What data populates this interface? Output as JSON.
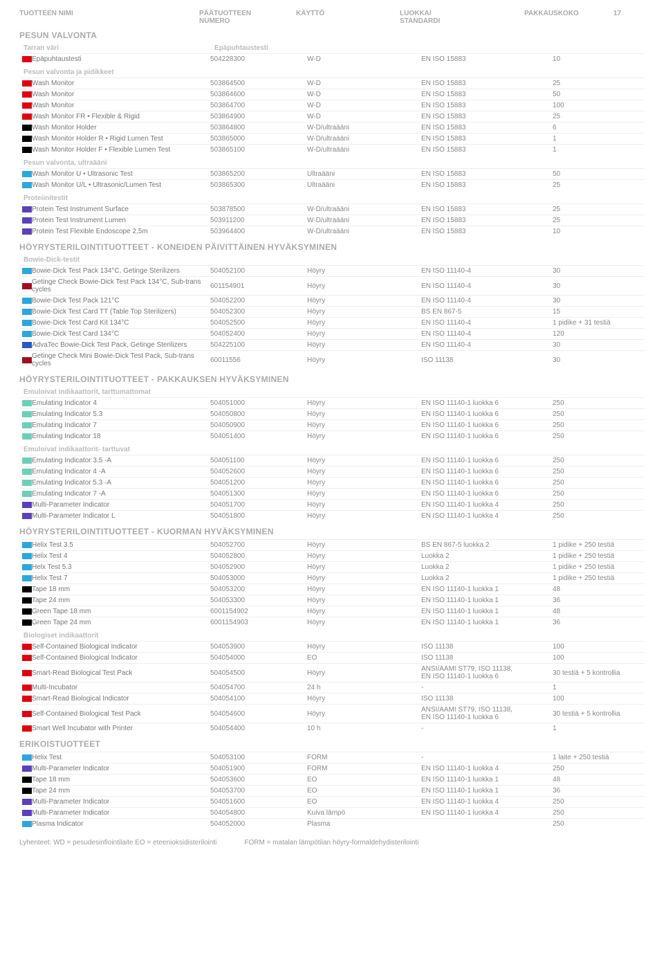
{
  "page_number": "17",
  "columns": {
    "name": "TUOTTEEN NIMI",
    "number": "PÄÄTUOTTEEN\nNUMERO",
    "use": "KÄYTTÖ",
    "standard": "LUOKKA/\nSTANDARDI",
    "pack": "PAKKAUSKOKO"
  },
  "colors": {
    "red": "#e3000f",
    "darkred": "#a30d1f",
    "black": "#000000",
    "cyan": "#2aa7df",
    "blue": "#2a58c6",
    "purple": "#5b3fbf",
    "teal": "#6cd0b8"
  },
  "sections": [
    {
      "title": "PESUN VALVONTA",
      "groups": [
        {
          "subtitle": "Tarran väri",
          "subtitle2": "Epäpuhtaustesti",
          "rows": [
            [
              "red",
              "Epäpuhtaustesti",
              "504228300",
              "W-D",
              "EN ISO 15883",
              "10"
            ]
          ]
        },
        {
          "subtitle": "Pesun valvonta ja pidikkeet",
          "rows": [
            [
              "red",
              "Wash Monitor",
              "503864500",
              "W-D",
              "EN ISO 15883",
              "25"
            ],
            [
              "red",
              "Wash Monitor",
              "503864600",
              "W-D",
              "EN ISO 15883",
              "50"
            ],
            [
              "red",
              "Wash Monitor",
              "503864700",
              "W-D",
              "EN ISO 15883",
              "100"
            ],
            [
              "red",
              "Wash Monitor FR • Flexible & Rigid",
              "503864900",
              "W-D",
              "EN ISO 15883",
              "25"
            ],
            [
              "black",
              "Wash Monitor Holder",
              "503864800",
              "W-D/ultraääni",
              "EN ISO 15883",
              "6"
            ],
            [
              "black",
              "Wash Monitor Holder R • Rigid Lumen Test",
              "503865000",
              "W-D/ultraääni",
              "EN ISO 15883",
              "1"
            ],
            [
              "black",
              "Wash Monitor Holder F • Flexible Lumen Test",
              "503865100",
              "W-D/ultraääni",
              "EN ISO 15883",
              "1"
            ]
          ]
        },
        {
          "subtitle": "Pesun valvonta, ultraääni",
          "rows": [
            [
              "cyan",
              "Wash Monitor U • Ultrasonic Test",
              "503865200",
              "Ultraääni",
              "EN ISO 15883",
              "50"
            ],
            [
              "cyan",
              "Wash Monitor U/L • Ultrasonic/Lumen Test",
              "503865300",
              "Ultraääni",
              "EN ISO 15883",
              "25"
            ]
          ]
        },
        {
          "subtitle": "Proteiinitestit",
          "rows": [
            [
              "purple",
              "Protein Test Instrument Surface",
              "503878500",
              "W-D/ultraääni",
              "EN ISO 15883",
              "25"
            ],
            [
              "purple",
              "Protein Test Instrument Lumen",
              "503911200",
              "W-D/ultraääni",
              "EN ISO 15883",
              "25"
            ],
            [
              "purple",
              "Protein Test Flexible Endoscope 2,5m",
              "503964400",
              "W-D/ultraääni",
              "EN ISO 15883",
              "10"
            ]
          ]
        }
      ]
    },
    {
      "title": "HÖYRYSTERILOINTITUOTTEET - KONEIDEN PÄIVITTÄINEN HYVÄKSYMINEN",
      "groups": [
        {
          "subtitle": "Bowie-Dick-testit",
          "rows": [
            [
              "cyan",
              "Bowie-Dick Test Pack 134°C, Getinge Sterilizers",
              "504052100",
              "Höyry",
              "EN ISO 11140-4",
              "30"
            ],
            [
              "darkred",
              "Getinge Check Bowie-Dick Test Pack 134°C, Sub-trans cycles",
              "601154901",
              "Höyry",
              "EN ISO 11140-4",
              "30"
            ],
            [
              "cyan",
              "Bowie-Dick Test Pack 121°C",
              "504052200",
              "Höyry",
              "EN ISO 11140-4",
              "30"
            ],
            [
              "cyan",
              "Bowie-Dick Test Card TT (Table Top Sterilizers)",
              "504052300",
              "Höyry",
              "BS EN 867-5",
              "15"
            ],
            [
              "cyan",
              "Bowie-Dick Test Card Kit 134°C",
              "504052500",
              "Höyry",
              "EN ISO 11140-4",
              "1 pidike + 31 testiä"
            ],
            [
              "cyan",
              "Bowie-Dick Test Card 134°C",
              "504052400",
              "Höyry",
              "EN ISO 11140-4",
              "120"
            ],
            [
              "blue",
              "AdvaTec Bowie-Dick Test Pack, Getinge Sterilizers",
              "504225100",
              "Höyry",
              "EN ISO 11140-4",
              "30"
            ],
            [
              "darkred",
              "Getinge Check Mini Bowie-Dick Test Pack, Sub-trans cycles",
              "60011556",
              "Höyry",
              "ISO 11138",
              "30"
            ]
          ]
        }
      ]
    },
    {
      "title": "HÖYRYSTERILOINTITUOTTEET - PAKKAUKSEN HYVÄKSYMINEN",
      "groups": [
        {
          "subtitle": "Emuloivat indikaattorit, tarttumattomat",
          "rows": [
            [
              "teal",
              "Emulating Indicator 4",
              "504051000",
              "Höyry",
              "EN ISO 11140-1 luokka 6",
              "250"
            ],
            [
              "teal",
              "Emulating Indicator 5.3",
              "504050800",
              "Höyry",
              "EN ISO 11140-1 luokka 6",
              "250"
            ],
            [
              "teal",
              "Emulating Indicator 7",
              "504050900",
              "Höyry",
              "EN ISO 11140-1 luokka 6",
              "250"
            ],
            [
              "teal",
              "Emulating Indicator 18",
              "504051400",
              "Höyry",
              "EN ISO 11140-1 luokka 6",
              "250"
            ]
          ]
        },
        {
          "subtitle": "Emuloivat indikaattorit- tarttuvat",
          "rows": [
            [
              "teal",
              "Emulating Indicator 3.5 -A",
              "504051100",
              "Höyry",
              "EN ISO 11140-1 luokka 6",
              "250"
            ],
            [
              "teal",
              "Emulating Indicator 4 -A",
              "504052600",
              "Höyry",
              "EN ISO 11140-1 luokka 6",
              "250"
            ],
            [
              "teal",
              "Emulating Indicator 5.3 -A",
              "504051200",
              "Höyry",
              "EN ISO 11140-1 luokka 6",
              "250"
            ],
            [
              "teal",
              "Emulating Indicator 7 -A",
              "504051300",
              "Höyry",
              "EN ISO 11140-1 luokka 6",
              "250"
            ],
            [
              "purple",
              "Multi-Parameter Indicator",
              "504051700",
              "Höyry",
              "EN ISO 11140-1 luokka 4",
              "250"
            ],
            [
              "purple",
              "Multi-Parameter Indicator L",
              "504051800",
              "Höyry",
              "EN ISO 11140-1 luokka 4",
              "250"
            ]
          ]
        }
      ]
    },
    {
      "title": "HÖYRYSTERILOINTITUOTTEET - KUORMAN HYVÄKSYMINEN",
      "groups": [
        {
          "subtitle": "",
          "rows": [
            [
              "cyan",
              "Helix Test 3.5",
              "504052700",
              "Höyry",
              "BS EN 867-5 luokka 2",
              "1 pidike + 250 testiä"
            ],
            [
              "cyan",
              "Helix Test 4",
              "504052800",
              "Höyry",
              "Luokka 2",
              "1 pidike + 250 testiä"
            ],
            [
              "cyan",
              "Helx Test 5.3",
              "504052900",
              "Höyry",
              "Luokka 2",
              "1 pidike + 250 testiä"
            ],
            [
              "cyan",
              "Helix Test 7",
              "504053000",
              "Höyry",
              "Luokka 2",
              "1 pidike + 250 testiä"
            ],
            [
              "black",
              "Tape 18 mm",
              "504053200",
              "Höyry",
              "EN ISO 11140-1 luokka 1",
              "48"
            ],
            [
              "black",
              "Tape 24 mm",
              "504053300",
              "Höyry",
              "EN ISO 11140-1 luokka 1",
              "36"
            ],
            [
              "black",
              "Green Tape 18 mm",
              "6001154902",
              "Höyry",
              "EN ISO 11140-1 luokka 1",
              "48"
            ],
            [
              "black",
              "Green Tape 24 mm",
              "6001154903",
              "Höyry",
              "EN ISO 11140-1 luokka 1",
              "36"
            ]
          ]
        },
        {
          "subtitle": "Biologiset indikaattorit",
          "rows": [
            [
              "red",
              "Self-Contained Biological Indicator",
              "504053900",
              "Höyry",
              "ISO 11138",
              "100"
            ],
            [
              "red",
              "Self-Contained Biological Indicator",
              "504054000",
              "EO",
              "ISO 11138",
              "100"
            ],
            [
              "red",
              "Smart-Read Biological Test Pack",
              "504054500",
              "Höyry",
              "ANSI/AAMI ST79, ISO 11138,\nEN ISO 11140-1 luokka 6",
              "30 testiä + 5 kontrollia"
            ],
            [
              "red",
              "Multi-Incubator",
              "504054700",
              "24 h",
              "-",
              "1"
            ],
            [
              "red",
              "Smart-Read Biological Indicator",
              "504054100",
              "Höyry",
              "ISO 11138",
              "100"
            ],
            [
              "red",
              "Self-Contained Biological Test Pack",
              "504054600",
              "Höyry",
              "ANSI/AAMI ST79, ISO 11138,\nEN ISO 11140-1 luokka 6",
              "30 testiä + 5 kontrollia"
            ],
            [
              "red",
              "Smart Well Incubator with Printer",
              "504054400",
              "10 h",
              "-",
              "1"
            ]
          ]
        }
      ]
    },
    {
      "title": "ERIKOISTUOTTEET",
      "groups": [
        {
          "subtitle": "",
          "rows": [
            [
              "cyan",
              "Helix Test",
              "504053100",
              "FORM",
              "-",
              "1 laite + 250 testiä"
            ],
            [
              "purple",
              "Multi-Parameter Indicator",
              "504051900",
              "FORM",
              "EN ISO 11140-1 luokka 4",
              "250"
            ],
            [
              "black",
              "Tape 18 mm",
              "504053600",
              "EO",
              "EN ISO 11140-1 luokka 1",
              "48"
            ],
            [
              "black",
              "Tape 24 mm",
              "504053700",
              "EO",
              "EN ISO 11140-1 luokka 1",
              "36"
            ],
            [
              "purple",
              "Multi-Parameter Indicator",
              "504051600",
              "EO",
              "EN ISO 11140-1 luokka 4",
              "250"
            ],
            [
              "purple",
              "Multi-Parameter Indicator",
              "504054800",
              "Kuiva lämpö",
              "EN ISO 11140-1 luokka 4",
              "250"
            ],
            [
              "cyan",
              "Plasma Indicator",
              "504052000",
              "Plasma",
              "",
              "250"
            ]
          ]
        }
      ]
    }
  ],
  "footer": {
    "left": "Lyhenteet: WD = pesudesinfiointilaite   EO = eteenioksidisterilointi",
    "right": "FORM = matalan lämpötilan höyry-formaldehydisterilointi"
  }
}
